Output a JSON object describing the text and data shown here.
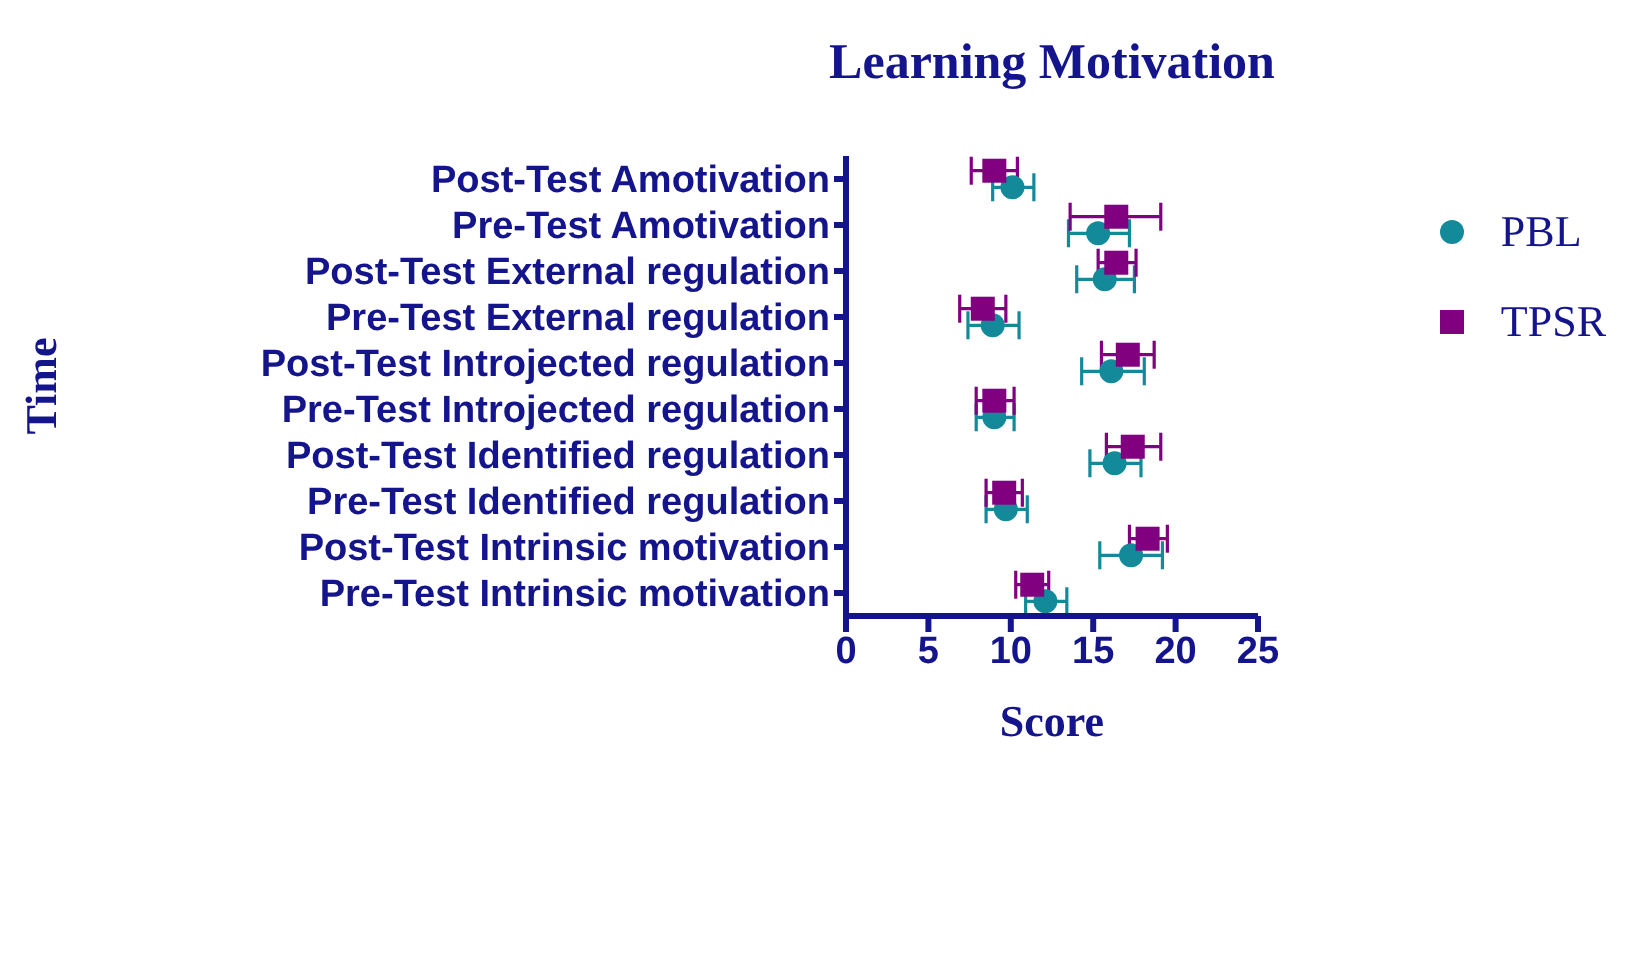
{
  "chart_data": {
    "type": "scatter",
    "title": "Learning Motivation",
    "xlabel": "Score",
    "ylabel": "Time",
    "orientation": "horizontal",
    "categories": [
      "Post-Test Amotivation",
      "Pre-Test Amotivation",
      "Post-Test External regulation",
      "Pre-Test External regulation",
      "Post-Test Introjected regulation",
      "Pre-Test Introjected regulation",
      "Post-Test Identified regulation",
      "Pre-Test Identified regulation",
      "Post-Test Intrinsic motivation",
      "Pre-Test Intrinsic motivation"
    ],
    "series": [
      {
        "name": "PBL",
        "color": "#138a9a",
        "marker": "circle",
        "values": [
          10.1,
          15.3,
          15.7,
          8.9,
          16.1,
          9.0,
          16.3,
          9.7,
          17.3,
          12.1
        ],
        "errors": [
          [
            8.9,
            11.4
          ],
          [
            13.5,
            17.2
          ],
          [
            14.0,
            17.5
          ],
          [
            7.4,
            10.5
          ],
          [
            14.3,
            18.1
          ],
          [
            7.9,
            10.2
          ],
          [
            14.8,
            17.9
          ],
          [
            8.5,
            11.0
          ],
          [
            15.4,
            19.2
          ],
          [
            10.9,
            13.4
          ]
        ]
      },
      {
        "name": "TPSR",
        "color": "#800080",
        "marker": "square",
        "values": [
          9.0,
          16.4,
          16.4,
          8.3,
          17.1,
          9.0,
          17.4,
          9.6,
          18.3,
          11.3
        ],
        "errors": [
          [
            7.6,
            10.4
          ],
          [
            13.6,
            19.1
          ],
          [
            15.3,
            17.6
          ],
          [
            6.9,
            9.7
          ],
          [
            15.5,
            18.7
          ],
          [
            7.9,
            10.2
          ],
          [
            15.8,
            19.1
          ],
          [
            8.5,
            10.7
          ],
          [
            17.2,
            19.5
          ],
          [
            10.3,
            12.3
          ]
        ]
      }
    ],
    "xlim": [
      0,
      25
    ],
    "xticks": [
      0,
      5,
      10,
      15,
      20,
      25
    ],
    "legend": "top right"
  }
}
